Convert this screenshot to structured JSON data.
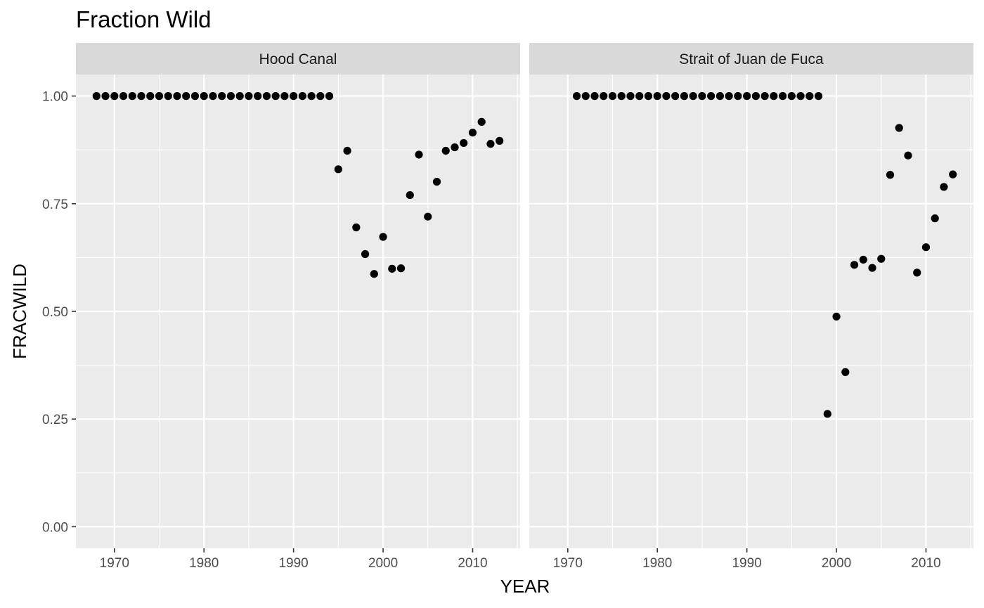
{
  "chart_data": {
    "type": "scatter",
    "title": "Fraction Wild",
    "xlabel": "YEAR",
    "ylabel": "FRACWILD",
    "xlim": [
      1965.7,
      2015.3
    ],
    "ylim": [
      -0.05,
      1.05
    ],
    "x_ticks": [
      1970,
      1980,
      1990,
      2000,
      2010
    ],
    "x_tick_labels": [
      "1970",
      "1980",
      "1990",
      "2000",
      "2010"
    ],
    "y_ticks": [
      0,
      0.25,
      0.5,
      0.75,
      1
    ],
    "y_tick_labels": [
      "0.00",
      "0.25",
      "0.50",
      "0.75",
      "1.00"
    ],
    "grid": true,
    "panels": [
      {
        "name": "Hood Canal",
        "x": [
          1968,
          1969,
          1970,
          1971,
          1972,
          1973,
          1974,
          1975,
          1976,
          1977,
          1978,
          1979,
          1980,
          1981,
          1982,
          1983,
          1984,
          1985,
          1986,
          1987,
          1988,
          1989,
          1990,
          1991,
          1992,
          1993,
          1994,
          1995,
          1996,
          1997,
          1998,
          1999,
          2000,
          2001,
          2002,
          2003,
          2004,
          2005,
          2006,
          2007,
          2008,
          2009,
          2010,
          2011,
          2012,
          2013
        ],
        "y": [
          1,
          1,
          1,
          1,
          1,
          1,
          1,
          1,
          1,
          1,
          1,
          1,
          1,
          1,
          1,
          1,
          1,
          1,
          1,
          1,
          1,
          1,
          1,
          1,
          1,
          1,
          1,
          0.83,
          0.873,
          0.695,
          0.633,
          0.587,
          0.673,
          0.599,
          0.6,
          0.77,
          0.864,
          0.72,
          0.801,
          0.873,
          0.881,
          0.891,
          0.915,
          0.94,
          0.889,
          0.896
        ]
      },
      {
        "name": "Strait of Juan de Fuca",
        "x": [
          1971,
          1972,
          1973,
          1974,
          1975,
          1976,
          1977,
          1978,
          1979,
          1980,
          1981,
          1982,
          1983,
          1984,
          1985,
          1986,
          1987,
          1988,
          1989,
          1990,
          1991,
          1992,
          1993,
          1994,
          1995,
          1996,
          1997,
          1998,
          1999,
          2000,
          2001,
          2002,
          2003,
          2004,
          2005,
          2006,
          2007,
          2008,
          2009,
          2010,
          2011,
          2012,
          2013
        ],
        "y": [
          1,
          1,
          1,
          1,
          1,
          1,
          1,
          1,
          1,
          1,
          1,
          1,
          1,
          1,
          1,
          1,
          1,
          1,
          1,
          1,
          1,
          1,
          1,
          1,
          1,
          1,
          1,
          1,
          0.262,
          0.488,
          0.359,
          0.608,
          0.62,
          0.601,
          0.622,
          0.817,
          0.926,
          0.862,
          0.59,
          0.649,
          0.716,
          0.789,
          0.818
        ]
      }
    ]
  }
}
